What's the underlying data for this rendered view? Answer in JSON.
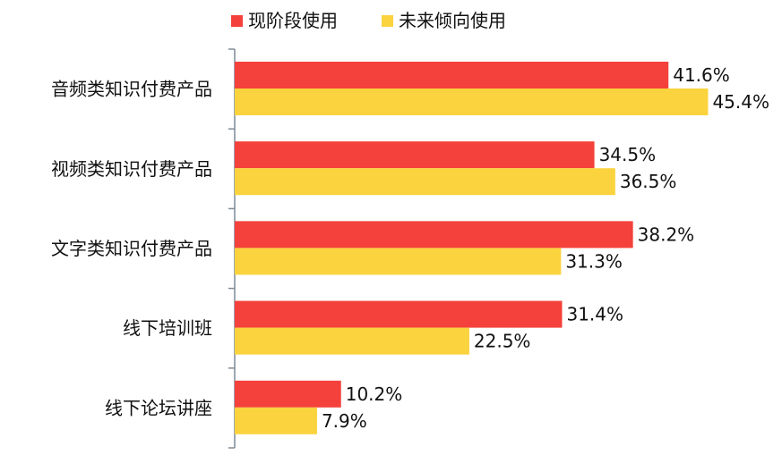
{
  "chart_data": {
    "type": "bar",
    "orientation": "horizontal",
    "categories": [
      "音频类知识付费产品",
      "视频类知识付费产品",
      "文字类知识付费产品",
      "线下培训班",
      "线下论坛讲座"
    ],
    "series": [
      {
        "name": "现阶段使用",
        "values": [
          41.6,
          34.5,
          38.2,
          31.4,
          10.2
        ],
        "labels": [
          "41.6%",
          "34.5%",
          "38.2%",
          "31.4%",
          "10.2%"
        ],
        "color": "#f4413b"
      },
      {
        "name": "未来倾向使用",
        "values": [
          45.4,
          36.5,
          31.3,
          22.5,
          7.9
        ],
        "labels": [
          "45.4%",
          "36.5%",
          "31.3%",
          "22.5%",
          "7.9%"
        ],
        "color": "#fad33e"
      }
    ],
    "xlim": [
      0,
      50
    ],
    "grid": false,
    "legend": "top",
    "axis_color": "#7f8a96"
  }
}
